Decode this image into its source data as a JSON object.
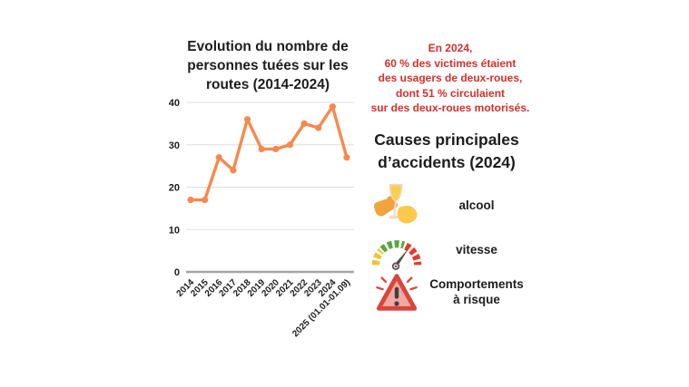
{
  "chart_data": {
    "type": "line",
    "title": "Evolution du nombre de personnes tuées sur les routes (2014-2024)",
    "categories": [
      "2014",
      "2015",
      "2016",
      "2017",
      "2018",
      "2019",
      "2020",
      "2021",
      "2022",
      "2023",
      "2024",
      "2025 (01.01-01.09)"
    ],
    "values": [
      17,
      17,
      27,
      24,
      36,
      29,
      29,
      30,
      35,
      34,
      39,
      27
    ],
    "xlabel": "",
    "ylabel": "",
    "ylim": [
      0,
      40
    ],
    "yticks": [
      0,
      10,
      20,
      30,
      40
    ],
    "grid": true,
    "legend": false,
    "line_color": "#F6894F",
    "grid_color": "#dedede",
    "axis_color": "#a6a6a6"
  },
  "stats": {
    "color": "#D2302C",
    "lines": [
      "En 2024,",
      "60 % des victimes étaient",
      "des usagers de deux-roues,",
      "dont 51 % circulaient",
      "sur des deux-roues motorisés."
    ]
  },
  "causes": {
    "title": "Causes principales d’accidents (2024)",
    "items": [
      {
        "label": "alcool",
        "icon": "clinking-glass-icon"
      },
      {
        "label": "vitesse",
        "icon": "speedometer-icon"
      },
      {
        "label": "Comportements à risque",
        "icon": "warning-triangle-icon"
      }
    ]
  }
}
